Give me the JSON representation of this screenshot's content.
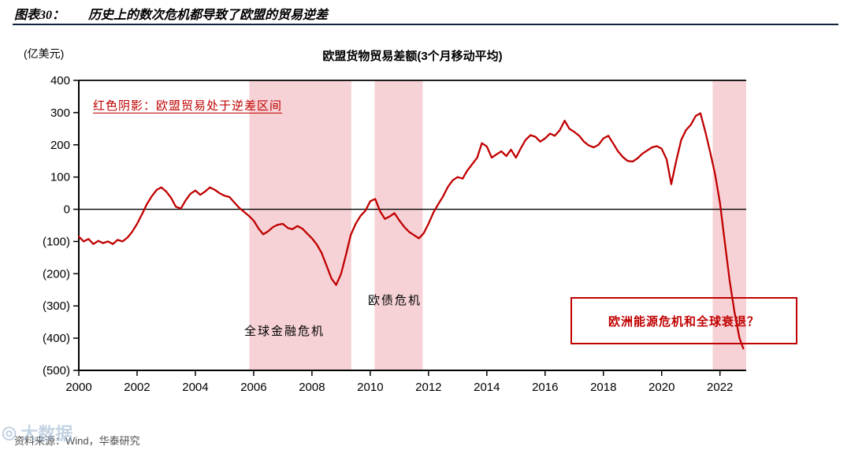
{
  "header": {
    "figure_label": "图表30：",
    "figure_title": "历史上的数次危机都导致了欧盟的贸易逆差",
    "rule_color": "#10243e"
  },
  "chart_data": {
    "type": "line",
    "title": "欧盟货物贸易差额(3个月移动平均)",
    "unit_label": "(亿美元)",
    "xlabel": "",
    "ylabel": "(亿美元)",
    "ylim": [
      -500,
      400
    ],
    "yticks": [
      400,
      300,
      200,
      100,
      0,
      -100,
      -200,
      -300,
      -400,
      -500
    ],
    "ytick_labels": [
      "400",
      "300",
      "200",
      "100",
      "0",
      "(100)",
      "(200)",
      "(300)",
      "(400)",
      "(500)"
    ],
    "xlim": [
      2000,
      2022.9
    ],
    "xticks": [
      2000,
      2002,
      2004,
      2006,
      2008,
      2010,
      2012,
      2014,
      2016,
      2018,
      2020,
      2022
    ],
    "grid": false,
    "legend": false,
    "line_color": "#c00000",
    "shade_color": "#f6d2d6",
    "shaded_regions": [
      {
        "from": 2005.85,
        "to": 2009.35
      },
      {
        "from": 2010.15,
        "to": 2011.8
      },
      {
        "from": 2021.75,
        "to": 2022.9
      }
    ],
    "series": [
      {
        "name": "欧盟货物贸易差额(3个月移动平均)",
        "color": "#c00000",
        "points": [
          [
            2000.0,
            -85
          ],
          [
            2000.17,
            -100
          ],
          [
            2000.33,
            -92
          ],
          [
            2000.5,
            -108
          ],
          [
            2000.67,
            -98
          ],
          [
            2000.83,
            -105
          ],
          [
            2001.0,
            -100
          ],
          [
            2001.17,
            -108
          ],
          [
            2001.33,
            -95
          ],
          [
            2001.5,
            -100
          ],
          [
            2001.67,
            -88
          ],
          [
            2001.83,
            -70
          ],
          [
            2002.0,
            -45
          ],
          [
            2002.17,
            -15
          ],
          [
            2002.33,
            15
          ],
          [
            2002.5,
            40
          ],
          [
            2002.67,
            60
          ],
          [
            2002.83,
            68
          ],
          [
            2003.0,
            55
          ],
          [
            2003.17,
            35
          ],
          [
            2003.33,
            8
          ],
          [
            2003.5,
            2
          ],
          [
            2003.67,
            28
          ],
          [
            2003.83,
            48
          ],
          [
            2004.0,
            58
          ],
          [
            2004.17,
            45
          ],
          [
            2004.33,
            55
          ],
          [
            2004.5,
            68
          ],
          [
            2004.67,
            60
          ],
          [
            2004.83,
            50
          ],
          [
            2005.0,
            42
          ],
          [
            2005.17,
            38
          ],
          [
            2005.33,
            22
          ],
          [
            2005.5,
            5
          ],
          [
            2005.67,
            -8
          ],
          [
            2005.83,
            -20
          ],
          [
            2006.0,
            -35
          ],
          [
            2006.17,
            -60
          ],
          [
            2006.33,
            -78
          ],
          [
            2006.5,
            -68
          ],
          [
            2006.67,
            -55
          ],
          [
            2006.83,
            -48
          ],
          [
            2007.0,
            -45
          ],
          [
            2007.17,
            -58
          ],
          [
            2007.33,
            -62
          ],
          [
            2007.5,
            -52
          ],
          [
            2007.67,
            -60
          ],
          [
            2007.83,
            -75
          ],
          [
            2008.0,
            -90
          ],
          [
            2008.17,
            -110
          ],
          [
            2008.33,
            -135
          ],
          [
            2008.5,
            -175
          ],
          [
            2008.67,
            -215
          ],
          [
            2008.83,
            -235
          ],
          [
            2009.0,
            -200
          ],
          [
            2009.17,
            -140
          ],
          [
            2009.33,
            -80
          ],
          [
            2009.5,
            -45
          ],
          [
            2009.67,
            -20
          ],
          [
            2009.83,
            -5
          ],
          [
            2010.0,
            25
          ],
          [
            2010.17,
            32
          ],
          [
            2010.33,
            -5
          ],
          [
            2010.5,
            -30
          ],
          [
            2010.67,
            -22
          ],
          [
            2010.83,
            -12
          ],
          [
            2011.0,
            -35
          ],
          [
            2011.17,
            -55
          ],
          [
            2011.33,
            -70
          ],
          [
            2011.5,
            -80
          ],
          [
            2011.67,
            -90
          ],
          [
            2011.83,
            -75
          ],
          [
            2012.0,
            -45
          ],
          [
            2012.17,
            -10
          ],
          [
            2012.33,
            15
          ],
          [
            2012.5,
            40
          ],
          [
            2012.67,
            70
          ],
          [
            2012.83,
            90
          ],
          [
            2013.0,
            100
          ],
          [
            2013.17,
            95
          ],
          [
            2013.33,
            120
          ],
          [
            2013.5,
            140
          ],
          [
            2013.67,
            160
          ],
          [
            2013.83,
            205
          ],
          [
            2014.0,
            195
          ],
          [
            2014.17,
            160
          ],
          [
            2014.33,
            170
          ],
          [
            2014.5,
            180
          ],
          [
            2014.67,
            165
          ],
          [
            2014.83,
            185
          ],
          [
            2015.0,
            160
          ],
          [
            2015.17,
            190
          ],
          [
            2015.33,
            215
          ],
          [
            2015.5,
            230
          ],
          [
            2015.67,
            225
          ],
          [
            2015.83,
            210
          ],
          [
            2016.0,
            220
          ],
          [
            2016.17,
            235
          ],
          [
            2016.33,
            228
          ],
          [
            2016.5,
            245
          ],
          [
            2016.67,
            275
          ],
          [
            2016.83,
            250
          ],
          [
            2017.0,
            240
          ],
          [
            2017.17,
            228
          ],
          [
            2017.33,
            210
          ],
          [
            2017.5,
            198
          ],
          [
            2017.67,
            192
          ],
          [
            2017.83,
            200
          ],
          [
            2018.0,
            220
          ],
          [
            2018.17,
            228
          ],
          [
            2018.33,
            205
          ],
          [
            2018.5,
            180
          ],
          [
            2018.67,
            162
          ],
          [
            2018.83,
            150
          ],
          [
            2019.0,
            148
          ],
          [
            2019.17,
            158
          ],
          [
            2019.33,
            172
          ],
          [
            2019.5,
            182
          ],
          [
            2019.67,
            192
          ],
          [
            2019.83,
            196
          ],
          [
            2020.0,
            188
          ],
          [
            2020.17,
            155
          ],
          [
            2020.33,
            78
          ],
          [
            2020.5,
            150
          ],
          [
            2020.67,
            215
          ],
          [
            2020.83,
            245
          ],
          [
            2021.0,
            262
          ],
          [
            2021.17,
            290
          ],
          [
            2021.33,
            298
          ],
          [
            2021.5,
            240
          ],
          [
            2021.67,
            175
          ],
          [
            2021.83,
            110
          ],
          [
            2022.0,
            20
          ],
          [
            2022.17,
            -105
          ],
          [
            2022.33,
            -220
          ],
          [
            2022.5,
            -320
          ],
          [
            2022.67,
            -400
          ],
          [
            2022.8,
            -432
          ]
        ]
      }
    ],
    "annotations": {
      "shading_note": "红色阴影：欧盟贸易处于逆差区间",
      "gfc_label": "全球金融危机",
      "debt_label": "欧债危机",
      "energy_label": "欧洲能源危机和全球衰退？"
    }
  },
  "footer": {
    "source": "资料来源：Wind，华泰研究"
  },
  "watermark": {
    "symbol": "◎",
    "text": "大数据"
  }
}
